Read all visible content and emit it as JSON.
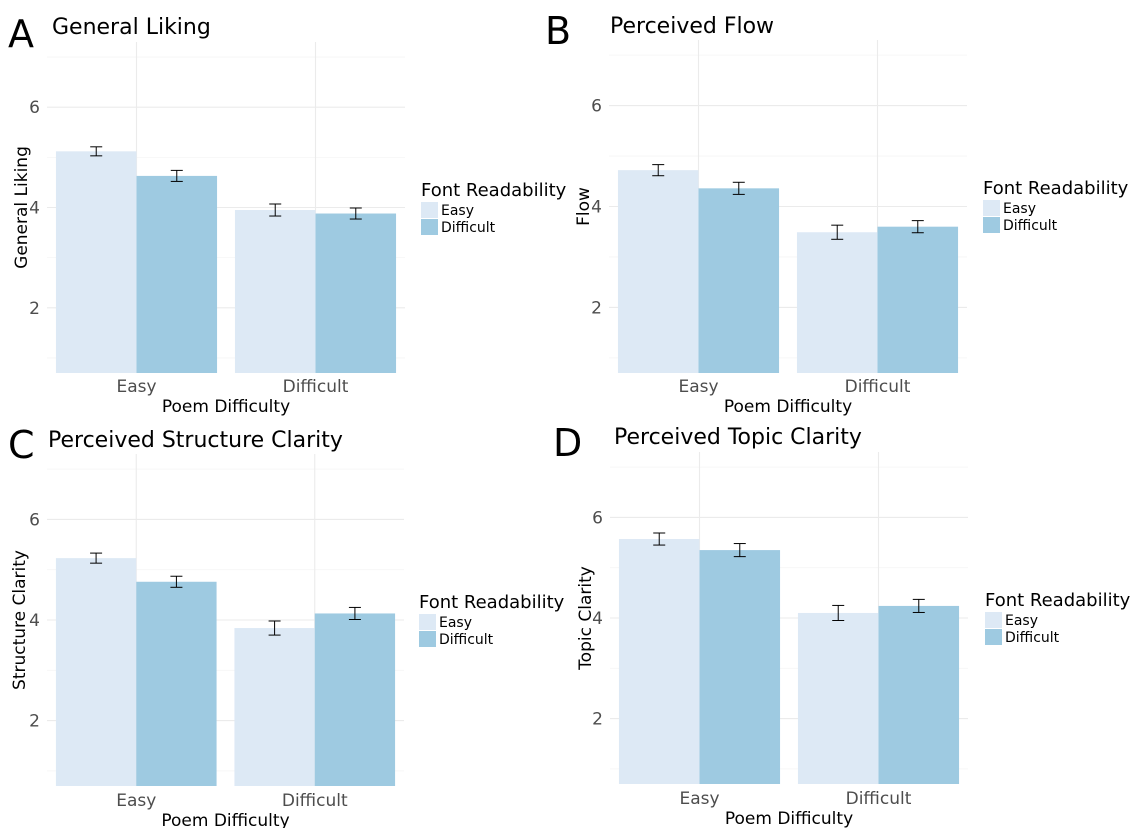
{
  "colors": {
    "easy": "#dde9f5",
    "difficult": "#9ecae1"
  },
  "legend": {
    "title": "Font Readability",
    "items": [
      "Easy",
      "Difficult"
    ]
  },
  "chart_data": [
    {
      "panel": "A",
      "type": "bar",
      "title": "General Liking",
      "xlabel": "Poem Difficulty",
      "ylabel": "General Liking",
      "categories": [
        "Easy",
        "Difficult"
      ],
      "ylim": [
        0.7,
        7.3
      ],
      "yticks": [
        2,
        4,
        6
      ],
      "grid": true,
      "legend_position": "right",
      "series": [
        {
          "name": "Easy",
          "values": [
            5.12,
            3.95
          ],
          "errors": [
            0.09,
            0.12
          ]
        },
        {
          "name": "Difficult",
          "values": [
            4.63,
            3.88
          ],
          "errors": [
            0.11,
            0.11
          ]
        }
      ]
    },
    {
      "panel": "B",
      "type": "bar",
      "title": "Perceived Flow",
      "xlabel": "Poem Difficulty",
      "ylabel": "Flow",
      "categories": [
        "Easy",
        "Difficult"
      ],
      "ylim": [
        0.7,
        7.3
      ],
      "yticks": [
        2,
        4,
        6
      ],
      "grid": true,
      "legend_position": "right",
      "series": [
        {
          "name": "Easy",
          "values": [
            4.72,
            3.49
          ],
          "errors": [
            0.11,
            0.14
          ]
        },
        {
          "name": "Difficult",
          "values": [
            4.36,
            3.6
          ],
          "errors": [
            0.12,
            0.12
          ]
        }
      ]
    },
    {
      "panel": "C",
      "type": "bar",
      "title": "Perceived Structure Clarity",
      "xlabel": "Poem Difficulty",
      "ylabel": "Structure Clarity",
      "categories": [
        "Easy",
        "Difficult"
      ],
      "ylim": [
        0.7,
        7.3
      ],
      "yticks": [
        2,
        4,
        6
      ],
      "grid": true,
      "legend_position": "right",
      "series": [
        {
          "name": "Easy",
          "values": [
            5.23,
            3.84
          ],
          "errors": [
            0.1,
            0.14
          ]
        },
        {
          "name": "Difficult",
          "values": [
            4.76,
            4.13
          ],
          "errors": [
            0.11,
            0.12
          ]
        }
      ]
    },
    {
      "panel": "D",
      "type": "bar",
      "title": "Perceived Topic Clarity",
      "xlabel": "Poem Difficulty",
      "ylabel": "Topic Clarity",
      "categories": [
        "Easy",
        "Difficult"
      ],
      "ylim": [
        0.7,
        7.3
      ],
      "yticks": [
        2,
        4,
        6
      ],
      "grid": true,
      "legend_position": "right",
      "series": [
        {
          "name": "Easy",
          "values": [
            5.57,
            4.1
          ],
          "errors": [
            0.12,
            0.15
          ]
        },
        {
          "name": "Difficult",
          "values": [
            5.35,
            4.24
          ],
          "errors": [
            0.13,
            0.13
          ]
        }
      ]
    }
  ]
}
